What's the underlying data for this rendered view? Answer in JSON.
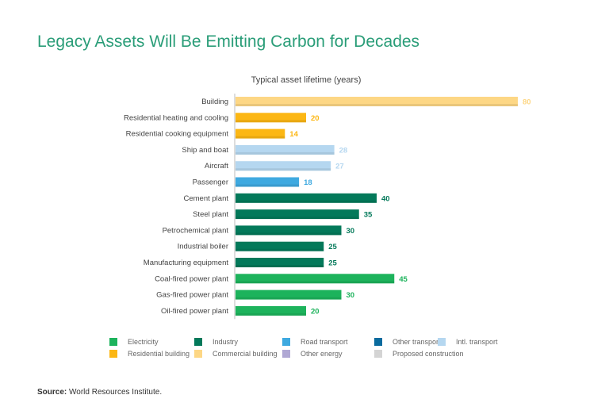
{
  "chart_data": {
    "type": "bar",
    "orientation": "horizontal",
    "title": "Legacy Assets Will Be Emitting Carbon for Decades",
    "subtitle": "Typical asset lifetime (years)",
    "xlim": [
      0,
      80
    ],
    "categories": [
      "Building",
      "Residential heating and cooling",
      "Residential cooking equipment",
      "Ship and boat",
      "Aircraft",
      "Passenger",
      "Cement plant",
      "Steel plant",
      "Petrochemical plant",
      "Industrial boiler",
      "Manufacturing equipment",
      "Coal-fired power plant",
      "Gas-fired power plant",
      "Oil-fired power plant"
    ],
    "values": [
      80,
      20,
      14,
      28,
      27,
      18,
      40,
      35,
      30,
      25,
      25,
      45,
      30,
      20
    ],
    "groups": [
      "Commercial building",
      "Residential building",
      "Residential building",
      "Intl. transport",
      "Intl. transport",
      "Road transport",
      "Industry",
      "Industry",
      "Industry",
      "Industry",
      "Industry",
      "Electricity",
      "Electricity",
      "Electricity"
    ],
    "legend": [
      {
        "label": "Electricity",
        "color": "#1db35c"
      },
      {
        "label": "Industry",
        "color": "#03795a"
      },
      {
        "label": "Road transport",
        "color": "#3ea9e0"
      },
      {
        "label": "Other transport",
        "color": "#0a6b9e"
      },
      {
        "label": "Intl. transport",
        "color": "#b5d7f0"
      },
      {
        "label": "Residential building",
        "color": "#fcb714"
      },
      {
        "label": "Commercial building",
        "color": "#fdd785"
      },
      {
        "label": "Other energy",
        "color": "#b0a8d4"
      },
      {
        "label": "Proposed construction",
        "color": "#d4d4d4"
      }
    ]
  },
  "source_label": "Source:",
  "source_text": " World Resources Institute."
}
